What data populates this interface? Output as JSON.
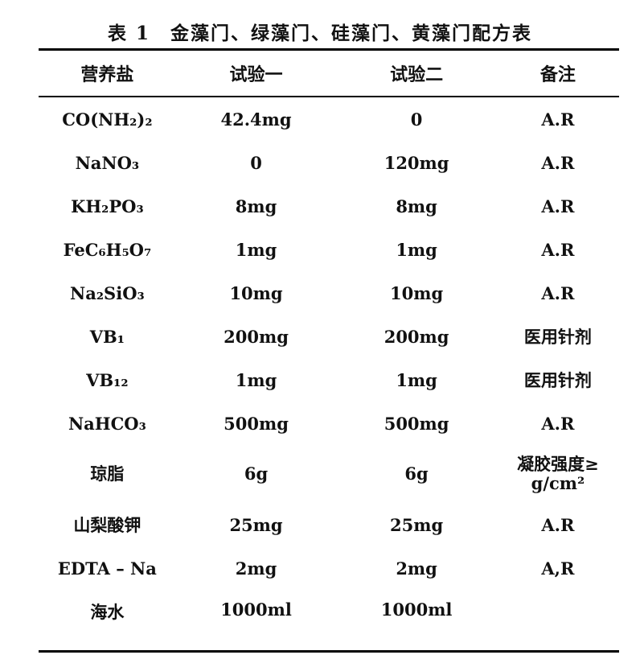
{
  "title": "表 1　金藻门、绿藻门、硅藻门、黄藻门配方表",
  "columns": [
    "营养盐",
    "试验一",
    "试验二",
    "备注"
  ],
  "rows": [
    {
      "name": "CO(NH₂)₂",
      "trial1": "42.4mg",
      "trial2": "0",
      "note": "A.R"
    },
    {
      "name": "NaNO₃",
      "trial1": "0",
      "trial2": "120mg",
      "note": "A.R"
    },
    {
      "name": "KH₂PO₃",
      "trial1": "8mg",
      "trial2": "8mg",
      "note": "A.R"
    },
    {
      "name": "FeC₆H₅O₇",
      "trial1": "1mg",
      "trial2": "1mg",
      "note": "A.R"
    },
    {
      "name": "Na₂SiO₃",
      "trial1": "10mg",
      "trial2": "10mg",
      "note": "A.R"
    },
    {
      "name": "VB₁",
      "trial1": "200mg",
      "trial2": "200mg",
      "note": "医用针剂"
    },
    {
      "name": "VB₁₂",
      "trial1": "1mg",
      "trial2": "1mg",
      "note": "医用针剂"
    },
    {
      "name": "NaHCO₃",
      "trial1": "500mg",
      "trial2": "500mg",
      "note": "A.R"
    },
    {
      "name": "琼脂",
      "trial1": "6g",
      "trial2": "6g",
      "note": "凝胶强度≥ g/cm²"
    },
    {
      "name": "山梨酸钾",
      "trial1": "25mg",
      "trial2": "25mg",
      "note": "A.R"
    },
    {
      "name": "EDTA – Na",
      "trial1": "2mg",
      "trial2": "2mg",
      "note": "A,R"
    },
    {
      "name": "海水",
      "trial1": "1000ml",
      "trial2": "1000ml",
      "note": ""
    }
  ]
}
